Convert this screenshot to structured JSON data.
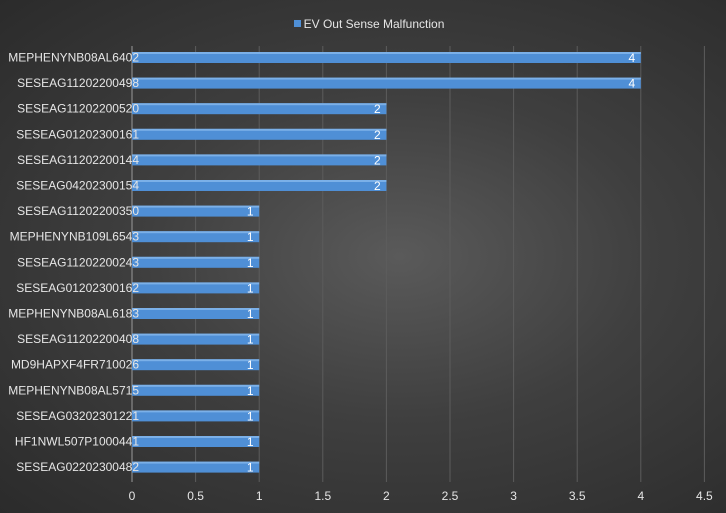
{
  "chart_data": {
    "type": "bar",
    "orientation": "horizontal",
    "categories": [
      "MEPHENYNB08AL6402",
      "SESEAG11202200498",
      "SESEAG11202200520",
      "SESEAG01202300161",
      "SESEAG11202200144",
      "SESEAG04202300154",
      "SESEAG11202200350",
      "MEPHENYNB109L6543",
      "SESEAG11202200243",
      "SESEAG01202300162",
      "MEPHENYNB08AL6183",
      "SESEAG11202200408",
      "MD9HAPXF4FR710026",
      "MEPHENYNB08AL5715",
      "SESEAG03202301221",
      "HF1NWL507P1000441",
      "SESEAG02202300482"
    ],
    "series": [
      {
        "name": "EV Out Sense Malfunction",
        "values": [
          4,
          4,
          2,
          2,
          2,
          2,
          1,
          1,
          1,
          1,
          1,
          1,
          1,
          1,
          1,
          1,
          1
        ],
        "color": "#4f8fd6"
      }
    ],
    "xlim": [
      0,
      4.5
    ],
    "xticks": [
      "0",
      "0.5",
      "1",
      "1.5",
      "2",
      "2.5",
      "3",
      "3.5",
      "4",
      "4.5"
    ],
    "grid": true,
    "legend_position": "top-center",
    "data_labels": true
  }
}
